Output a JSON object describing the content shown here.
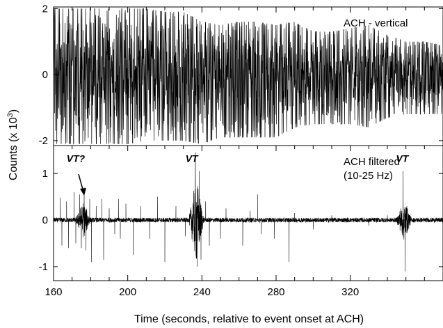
{
  "chart_data": {
    "type": "line",
    "ylabel_prefix": "Counts (x 10",
    "ylabel_exp": "3",
    "ylabel_suffix": ")",
    "xlabel": "Time (seconds, relative to event onset at ACH)",
    "xlim": [
      160,
      370
    ],
    "x_ticks": [
      160,
      200,
      240,
      280,
      320
    ],
    "panels": [
      {
        "title": "ACH - vertical",
        "ylim": [
          -2.15,
          2.05
        ],
        "y_ticks": [
          -2,
          0,
          2
        ],
        "series": {
          "x": [
            160,
            170,
            180,
            190,
            200,
            210,
            220,
            230,
            240,
            250,
            260,
            270,
            280,
            290,
            300,
            310,
            320,
            330,
            340,
            350,
            360,
            370
          ],
          "upper": [
            2.0,
            2.0,
            2.0,
            2.0,
            2.0,
            2.0,
            1.9,
            1.9,
            1.6,
            1.5,
            1.6,
            1.6,
            1.5,
            1.6,
            1.3,
            1.3,
            1.4,
            1.5,
            1.2,
            1.0,
            1.0,
            0.9
          ],
          "lower": [
            -2.1,
            -2.1,
            -2.1,
            -2.1,
            -2.1,
            -2.0,
            -2.0,
            -2.0,
            -2.1,
            -1.9,
            -1.9,
            -1.9,
            -1.9,
            -1.6,
            -1.5,
            -1.5,
            -1.5,
            -1.6,
            -1.3,
            -1.2,
            -1.2,
            -1.2
          ]
        }
      },
      {
        "title_lines": [
          "ACH filtered",
          "(10-25 Hz)"
        ],
        "ylim": [
          -1.3,
          1.6
        ],
        "y_ticks": [
          -1,
          0,
          1
        ],
        "series": {
          "noise_amplitude": 0.05,
          "spikes": [
            {
              "x": 163.5,
              "y": 0.48
            },
            {
              "x": 164.5,
              "y": -0.55
            },
            {
              "x": 167,
              "y": 0.4
            },
            {
              "x": 168,
              "y": -0.6
            },
            {
              "x": 171,
              "y": 0.6
            },
            {
              "x": 172,
              "y": -0.5
            },
            {
              "x": 174,
              "y": 0.55
            },
            {
              "x": 175,
              "y": -0.6
            },
            {
              "x": 176.5,
              "y": 0.7
            },
            {
              "x": 177.5,
              "y": -0.65
            },
            {
              "x": 179.5,
              "y": 0.45
            },
            {
              "x": 180.5,
              "y": -0.9
            },
            {
              "x": 183,
              "y": 0.3
            },
            {
              "x": 186,
              "y": 0.45
            },
            {
              "x": 187,
              "y": -0.85
            },
            {
              "x": 190,
              "y": 0.25
            },
            {
              "x": 193,
              "y": -0.3
            },
            {
              "x": 195,
              "y": 0.45
            },
            {
              "x": 196,
              "y": -0.4
            },
            {
              "x": 199,
              "y": 0.35
            },
            {
              "x": 203,
              "y": -0.75
            },
            {
              "x": 207,
              "y": 0.3
            },
            {
              "x": 212,
              "y": -0.4
            },
            {
              "x": 216,
              "y": 0.5
            },
            {
              "x": 220,
              "y": -0.9
            },
            {
              "x": 226,
              "y": 0.3
            },
            {
              "x": 231,
              "y": -0.35
            },
            {
              "x": 236.5,
              "y": 1.45
            },
            {
              "x": 237.5,
              "y": -1.0
            },
            {
              "x": 238.5,
              "y": 1.05
            },
            {
              "x": 239.5,
              "y": -0.85
            },
            {
              "x": 242,
              "y": 0.4
            },
            {
              "x": 244,
              "y": -0.55
            },
            {
              "x": 250,
              "y": -0.4
            },
            {
              "x": 253,
              "y": 0.25
            },
            {
              "x": 262,
              "y": -0.55
            },
            {
              "x": 266,
              "y": 0.2
            },
            {
              "x": 270,
              "y": 0.55
            },
            {
              "x": 272,
              "y": -0.3
            },
            {
              "x": 279,
              "y": -0.4
            },
            {
              "x": 287,
              "y": -0.9
            },
            {
              "x": 290,
              "y": 0.15
            },
            {
              "x": 300,
              "y": -0.2
            },
            {
              "x": 310,
              "y": 0.1
            },
            {
              "x": 330,
              "y": -0.12
            },
            {
              "x": 340,
              "y": 0.1
            },
            {
              "x": 348.5,
              "y": 1.05
            },
            {
              "x": 349.5,
              "y": -1.1
            },
            {
              "x": 350.5,
              "y": 0.3
            }
          ],
          "bursts": [
            {
              "x": 176,
              "amplitude": 0.35
            },
            {
              "x": 237,
              "amplitude": 0.9
            },
            {
              "x": 349,
              "amplitude": 0.4
            }
          ]
        },
        "annotations": [
          {
            "text": "VT?",
            "x": 172,
            "y": 1.25
          },
          {
            "text": "VT",
            "x": 234.5,
            "y": 1.25
          },
          {
            "text": "VT",
            "x": 348,
            "y": 1.25
          }
        ]
      }
    ]
  }
}
